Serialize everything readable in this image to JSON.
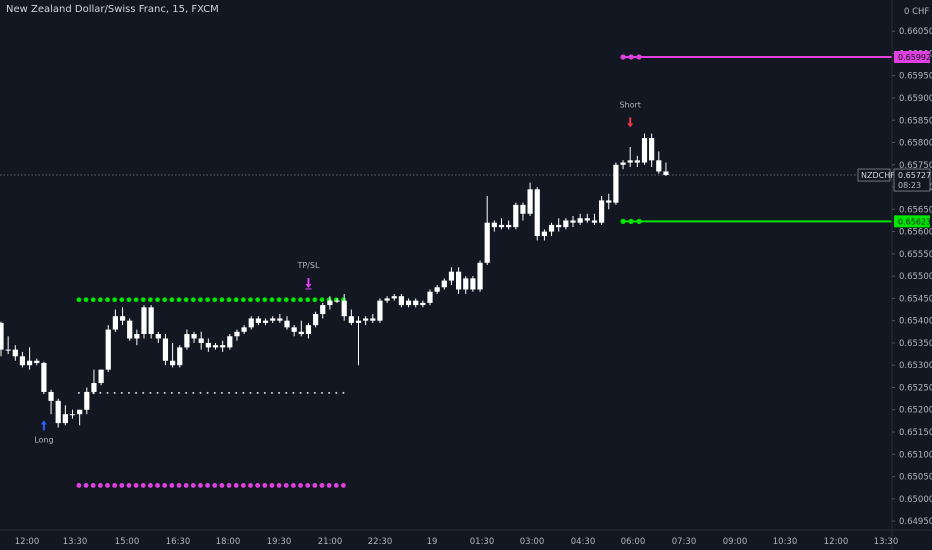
{
  "title": "New Zealand Dollar/Swiss Franc, 15, FXCM",
  "currency": "CHF",
  "colors": {
    "background": "#131722",
    "candle": "#ffffff",
    "green_level": "#00e600",
    "magenta_level": "#e040e0",
    "white_level": "#d1d4dc",
    "long_arrow": "#2962ff",
    "short_arrow": "#f23645",
    "tpsl_arrow": "#e040fb",
    "price_line": "#787b86"
  },
  "chart_data": {
    "type": "candlestick",
    "x_ticks": [
      "12:00",
      "13:30",
      "15:00",
      "16:30",
      "18:00",
      "19:30",
      "21:00",
      "22:30",
      "19",
      "01:30",
      "03:00",
      "04:30",
      "06:00",
      "07:30",
      "09:00",
      "10:30",
      "12:00",
      "13:30"
    ],
    "y_ticks": [
      "0.66050",
      "0.66000",
      "0.65950",
      "0.65900",
      "0.65850",
      "0.65800",
      "0.65750",
      "0.65700",
      "0.65650",
      "0.65600",
      "0.65550",
      "0.65500",
      "0.65450",
      "0.65400",
      "0.65350",
      "0.65300",
      "0.65250",
      "0.65200",
      "0.65150",
      "0.65100",
      "0.65050",
      "0.65000",
      "0.64950"
    ],
    "ylim": [
      0.6493,
      0.6612
    ],
    "candles": [
      [
        0.65395,
        0.65398,
        0.6532,
        0.65335
      ],
      [
        0.65335,
        0.65365,
        0.65325,
        0.65335
      ],
      [
        0.65335,
        0.65345,
        0.6531,
        0.6532
      ],
      [
        0.6532,
        0.6533,
        0.65295,
        0.653
      ],
      [
        0.653,
        0.6534,
        0.6529,
        0.6531
      ],
      [
        0.6531,
        0.65315,
        0.653,
        0.65305
      ],
      [
        0.65305,
        0.65308,
        0.65235,
        0.6524
      ],
      [
        0.6524,
        0.65245,
        0.6519,
        0.6522
      ],
      [
        0.6522,
        0.65225,
        0.6516,
        0.6517
      ],
      [
        0.6517,
        0.6521,
        0.65165,
        0.6519
      ],
      [
        0.6519,
        0.652,
        0.6518,
        0.6519
      ],
      [
        0.6519,
        0.652,
        0.65165,
        0.652
      ],
      [
        0.652,
        0.6525,
        0.6519,
        0.6524
      ],
      [
        0.6524,
        0.6529,
        0.65235,
        0.6526
      ],
      [
        0.6526,
        0.6529,
        0.65255,
        0.6529
      ],
      [
        0.6529,
        0.6539,
        0.65285,
        0.6538
      ],
      [
        0.6538,
        0.65425,
        0.65375,
        0.6541
      ],
      [
        0.6541,
        0.6543,
        0.6539,
        0.654
      ],
      [
        0.654,
        0.65405,
        0.65355,
        0.6536
      ],
      [
        0.6536,
        0.6538,
        0.65345,
        0.6537
      ],
      [
        0.6537,
        0.65435,
        0.6536,
        0.6543
      ],
      [
        0.6543,
        0.65435,
        0.6536,
        0.6537
      ],
      [
        0.6537,
        0.65375,
        0.6535,
        0.6536
      ],
      [
        0.6536,
        0.6537,
        0.653,
        0.6531
      ],
      [
        0.6531,
        0.6535,
        0.65295,
        0.653
      ],
      [
        0.653,
        0.65345,
        0.65295,
        0.6534
      ],
      [
        0.6534,
        0.6538,
        0.65335,
        0.6537
      ],
      [
        0.6537,
        0.65375,
        0.6535,
        0.6536
      ],
      [
        0.6536,
        0.65375,
        0.65335,
        0.6535
      ],
      [
        0.6535,
        0.6536,
        0.6533,
        0.6534
      ],
      [
        0.6534,
        0.6535,
        0.65335,
        0.65345
      ],
      [
        0.65345,
        0.65355,
        0.6533,
        0.6534
      ],
      [
        0.6534,
        0.6537,
        0.65335,
        0.65365
      ],
      [
        0.65365,
        0.6538,
        0.65355,
        0.65375
      ],
      [
        0.65375,
        0.6539,
        0.6537,
        0.65385
      ],
      [
        0.65385,
        0.6541,
        0.6538,
        0.65405
      ],
      [
        0.65405,
        0.6541,
        0.6539,
        0.65395
      ],
      [
        0.65395,
        0.65405,
        0.6539,
        0.654
      ],
      [
        0.654,
        0.6541,
        0.65395,
        0.65405
      ],
      [
        0.65405,
        0.65415,
        0.65395,
        0.654
      ],
      [
        0.654,
        0.6541,
        0.6538,
        0.65385
      ],
      [
        0.65385,
        0.6539,
        0.65365,
        0.65375
      ],
      [
        0.65375,
        0.654,
        0.65365,
        0.6537
      ],
      [
        0.6537,
        0.65395,
        0.6536,
        0.6539
      ],
      [
        0.6539,
        0.6542,
        0.65385,
        0.65415
      ],
      [
        0.65415,
        0.6544,
        0.65405,
        0.65435
      ],
      [
        0.65435,
        0.65455,
        0.65425,
        0.65445
      ],
      [
        0.65445,
        0.6545,
        0.6544,
        0.65445
      ],
      [
        0.65445,
        0.6546,
        0.654,
        0.6541
      ],
      [
        0.6541,
        0.65425,
        0.6539,
        0.65395
      ],
      [
        0.65395,
        0.6541,
        0.653,
        0.654
      ],
      [
        0.654,
        0.6541,
        0.6539,
        0.65405
      ],
      [
        0.65405,
        0.65415,
        0.65395,
        0.654
      ],
      [
        0.654,
        0.6545,
        0.65395,
        0.65445
      ],
      [
        0.65445,
        0.65455,
        0.6544,
        0.6545
      ],
      [
        0.6545,
        0.6546,
        0.65445,
        0.65455
      ],
      [
        0.65455,
        0.6546,
        0.6543,
        0.65435
      ],
      [
        0.65435,
        0.6545,
        0.6543,
        0.65445
      ],
      [
        0.65445,
        0.6545,
        0.6543,
        0.65435
      ],
      [
        0.65435,
        0.65445,
        0.6543,
        0.6544
      ],
      [
        0.6544,
        0.6547,
        0.65435,
        0.65465
      ],
      [
        0.65465,
        0.6548,
        0.6546,
        0.65475
      ],
      [
        0.65475,
        0.65495,
        0.6547,
        0.6549
      ],
      [
        0.6549,
        0.6552,
        0.6548,
        0.6551
      ],
      [
        0.6551,
        0.6552,
        0.6546,
        0.6547
      ],
      [
        0.6547,
        0.655,
        0.6546,
        0.65495
      ],
      [
        0.65495,
        0.655,
        0.65465,
        0.6547
      ],
      [
        0.6547,
        0.65535,
        0.65465,
        0.6553
      ],
      [
        0.6553,
        0.6568,
        0.65525,
        0.6562
      ],
      [
        0.6562,
        0.65625,
        0.656,
        0.6561
      ],
      [
        0.6561,
        0.6563,
        0.65605,
        0.65615
      ],
      [
        0.65615,
        0.65625,
        0.65605,
        0.6561
      ],
      [
        0.6561,
        0.65665,
        0.65605,
        0.6566
      ],
      [
        0.6566,
        0.65665,
        0.65625,
        0.6564
      ],
      [
        0.6564,
        0.6571,
        0.65635,
        0.65695
      ],
      [
        0.65695,
        0.657,
        0.6558,
        0.6559
      ],
      [
        0.6559,
        0.65605,
        0.6558,
        0.656
      ],
      [
        0.656,
        0.6562,
        0.6559,
        0.65615
      ],
      [
        0.65615,
        0.6563,
        0.656,
        0.6561
      ],
      [
        0.6561,
        0.6563,
        0.65605,
        0.65625
      ],
      [
        0.65625,
        0.65635,
        0.6561,
        0.6562
      ],
      [
        0.6562,
        0.6564,
        0.65615,
        0.6563
      ],
      [
        0.6563,
        0.6564,
        0.6562,
        0.65625
      ],
      [
        0.65625,
        0.6564,
        0.65615,
        0.6562
      ],
      [
        0.6562,
        0.6568,
        0.65615,
        0.6567
      ],
      [
        0.6567,
        0.65685,
        0.6565,
        0.65665
      ],
      [
        0.65665,
        0.65755,
        0.6566,
        0.6575
      ],
      [
        0.6575,
        0.6576,
        0.6574,
        0.65755
      ],
      [
        0.65755,
        0.6579,
        0.65745,
        0.6576
      ],
      [
        0.6576,
        0.6577,
        0.65745,
        0.65755
      ],
      [
        0.65755,
        0.6582,
        0.6575,
        0.6581
      ],
      [
        0.6581,
        0.6582,
        0.65745,
        0.6576
      ],
      [
        0.6576,
        0.6578,
        0.6573,
        0.65735
      ],
      [
        0.65735,
        0.65755,
        0.65725,
        0.65727
      ]
    ],
    "levels": [
      {
        "name": "green-upper-dots",
        "color": "#00e600",
        "value": 0.65447,
        "from": 6,
        "to": 48,
        "style": "dots"
      },
      {
        "name": "white-entry-dots",
        "color": "#d1d4dc",
        "value": 0.65238,
        "from": 6,
        "to": 48,
        "style": "small-dots"
      },
      {
        "name": "magenta-lower-dots",
        "color": "#e040e0",
        "value": 0.6503,
        "from": 6,
        "to": 48,
        "style": "dots"
      },
      {
        "name": "magenta-upper-line",
        "color": "#e040e0",
        "value": 0.65992,
        "from": 87,
        "to": 130,
        "style": "line"
      },
      {
        "name": "green-lower-line",
        "color": "#00e600",
        "value": 0.65623,
        "from": 87,
        "to": 130,
        "style": "line"
      }
    ],
    "annotations": [
      {
        "label": "Long",
        "type": "long",
        "candle": 6,
        "price": 0.65185
      },
      {
        "label": "TP/SL",
        "type": "tpsl",
        "candle": 43,
        "price": 0.6546
      },
      {
        "label": "Short",
        "type": "short",
        "candle": 88,
        "price": 0.65825
      }
    ],
    "last_price": {
      "symbol": "NZDCHF",
      "value": "0.65727",
      "countdown": "08:23"
    },
    "level_tags": [
      {
        "value": "0.65992",
        "color": "#e040e0",
        "level": 0.65992
      },
      {
        "value": "0.65623",
        "color": "#00e600",
        "level": 0.65623
      }
    ]
  }
}
